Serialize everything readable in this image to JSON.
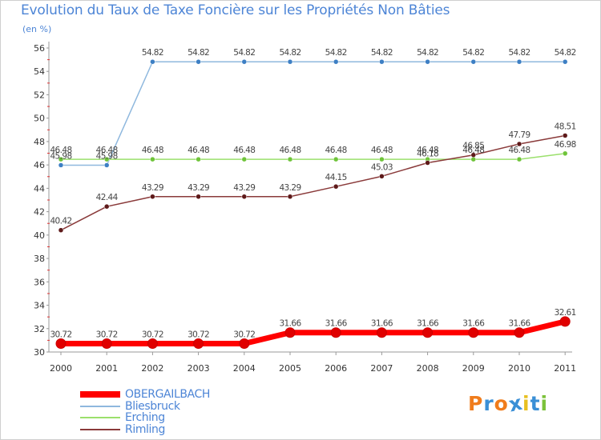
{
  "chart_data": {
    "type": "line",
    "title": "Evolution du Taux de Taxe Foncière sur les Propriétés Non Bâties",
    "ylabel": "(en %)",
    "xlabel": "",
    "categories": [
      "2000",
      "2001",
      "2002",
      "2003",
      "2004",
      "2005",
      "2006",
      "2007",
      "2008",
      "2009",
      "2010",
      "2011"
    ],
    "ylim": [
      30,
      56
    ],
    "yticks": [
      30,
      32,
      34,
      36,
      38,
      40,
      42,
      44,
      46,
      48,
      50,
      52,
      54,
      56
    ],
    "grid": false,
    "legend_position": "bottom-left",
    "series": [
      {
        "name": "OBERGAILBACH",
        "color": "#ff0000",
        "marker_color": "#e00000",
        "emphasis": true,
        "values": [
          30.72,
          30.72,
          30.72,
          30.72,
          30.72,
          31.66,
          31.66,
          31.66,
          31.66,
          31.66,
          31.66,
          32.61
        ],
        "labels": [
          "30.72",
          "30.72",
          "30.72",
          "30.72",
          "30.72",
          "31.66",
          "31.66",
          "31.66",
          "31.66",
          "31.66",
          "31.66",
          "32.61"
        ]
      },
      {
        "name": "Bliesbruck",
        "color": "#8fb8de",
        "marker_color": "#3d7fc4",
        "emphasis": false,
        "values": [
          45.98,
          45.98,
          54.82,
          54.82,
          54.82,
          54.82,
          54.82,
          54.82,
          54.82,
          54.82,
          54.82,
          54.82
        ],
        "labels": [
          "45.98",
          "45.98",
          "54.82",
          "54.82",
          "54.82",
          "54.82",
          "54.82",
          "54.82",
          "54.82",
          "54.82",
          "54.82",
          "54.82"
        ]
      },
      {
        "name": "Erching",
        "color": "#9be06c",
        "marker_color": "#6fc43a",
        "emphasis": false,
        "values": [
          46.48,
          46.48,
          46.48,
          46.48,
          46.48,
          46.48,
          46.48,
          46.48,
          46.48,
          46.48,
          46.48,
          46.98
        ],
        "labels": [
          "46.48",
          "46.48",
          "46.48",
          "46.48",
          "46.48",
          "46.48",
          "46.48",
          "46.48",
          "46.48",
          "46.48",
          "46.48",
          "46.98"
        ]
      },
      {
        "name": "Rimling",
        "color": "#8a3a3a",
        "marker_color": "#5e1a1a",
        "emphasis": false,
        "values": [
          40.42,
          42.44,
          43.29,
          43.29,
          43.29,
          43.29,
          44.15,
          45.03,
          46.18,
          46.85,
          47.79,
          48.51
        ],
        "labels": [
          "40.42",
          "42.44",
          "43.29",
          "43.29",
          "43.29",
          "43.29",
          "44.15",
          "45.03",
          "46.18",
          "46.85",
          "47.79",
          "48.51"
        ]
      }
    ]
  },
  "brand": {
    "text": "Proxiti",
    "letter_colors": [
      "#f07c1c",
      "#3a8fd6",
      "#f07c1c",
      "#3a8fd6",
      "#e8c020",
      "#3a8fd6",
      "#7cc23a"
    ]
  }
}
